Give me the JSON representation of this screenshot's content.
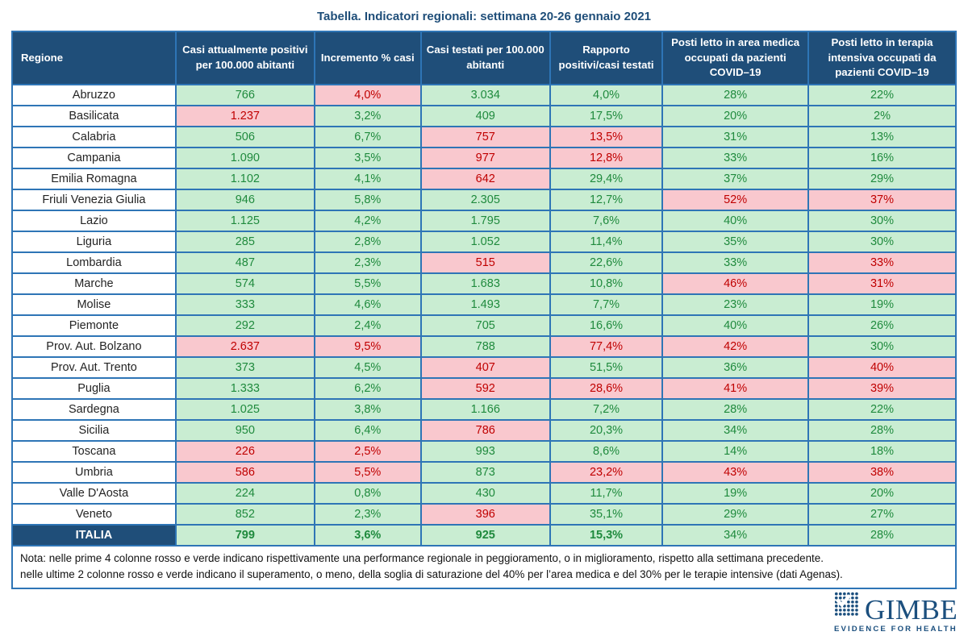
{
  "title": "Tabella. Indicatori regionali: settimana 20-26 gennaio 2021",
  "colors": {
    "header_navy": "#1F4E79",
    "grid_blue": "#2E75B6",
    "good_bg": "#C9EDD2",
    "good_text": "#1F8A3D",
    "bad_bg": "#F9C8CE",
    "bad_text": "#C00000"
  },
  "chart_data": {
    "type": "table",
    "title": "Tabella. Indicatori regionali: settimana 20-26 gennaio 2021",
    "columns": [
      "Regione",
      "Casi attualmente positivi per 100.000 abitanti",
      "Incremento % casi",
      "Casi testati per 100.000 abitanti",
      "Rapporto positivi/casi testati",
      "Posti letto in area medica occupati da pazienti COVID–19",
      "Posti letto in terapia intensiva occupati da pazienti COVID–19"
    ],
    "rows": [
      {
        "region": "Abruzzo",
        "values": [
          "766",
          "4,0%",
          "3.034",
          "4,0%",
          "28%",
          "22%"
        ],
        "colors": [
          "green",
          "red",
          "green",
          "green",
          "green",
          "green"
        ]
      },
      {
        "region": "Basilicata",
        "values": [
          "1.237",
          "3,2%",
          "409",
          "17,5%",
          "20%",
          "2%"
        ],
        "colors": [
          "red",
          "green",
          "green",
          "green",
          "green",
          "green"
        ]
      },
      {
        "region": "Calabria",
        "values": [
          "506",
          "6,7%",
          "757",
          "13,5%",
          "31%",
          "13%"
        ],
        "colors": [
          "green",
          "green",
          "red",
          "red",
          "green",
          "green"
        ]
      },
      {
        "region": "Campania",
        "values": [
          "1.090",
          "3,5%",
          "977",
          "12,8%",
          "33%",
          "16%"
        ],
        "colors": [
          "green",
          "green",
          "red",
          "red",
          "green",
          "green"
        ]
      },
      {
        "region": "Emilia Romagna",
        "values": [
          "1.102",
          "4,1%",
          "642",
          "29,4%",
          "37%",
          "29%"
        ],
        "colors": [
          "green",
          "green",
          "red",
          "green",
          "green",
          "green"
        ]
      },
      {
        "region": "Friuli Venezia Giulia",
        "values": [
          "946",
          "5,8%",
          "2.305",
          "12,7%",
          "52%",
          "37%"
        ],
        "colors": [
          "green",
          "green",
          "green",
          "green",
          "red",
          "red"
        ]
      },
      {
        "region": "Lazio",
        "values": [
          "1.125",
          "4,2%",
          "1.795",
          "7,6%",
          "40%",
          "30%"
        ],
        "colors": [
          "green",
          "green",
          "green",
          "green",
          "green",
          "green"
        ]
      },
      {
        "region": "Liguria",
        "values": [
          "285",
          "2,8%",
          "1.052",
          "11,4%",
          "35%",
          "30%"
        ],
        "colors": [
          "green",
          "green",
          "green",
          "green",
          "green",
          "green"
        ]
      },
      {
        "region": "Lombardia",
        "values": [
          "487",
          "2,3%",
          "515",
          "22,6%",
          "33%",
          "33%"
        ],
        "colors": [
          "green",
          "green",
          "red",
          "green",
          "green",
          "red"
        ]
      },
      {
        "region": "Marche",
        "values": [
          "574",
          "5,5%",
          "1.683",
          "10,8%",
          "46%",
          "31%"
        ],
        "colors": [
          "green",
          "green",
          "green",
          "green",
          "red",
          "red"
        ]
      },
      {
        "region": "Molise",
        "values": [
          "333",
          "4,6%",
          "1.493",
          "7,7%",
          "23%",
          "19%"
        ],
        "colors": [
          "green",
          "green",
          "green",
          "green",
          "green",
          "green"
        ]
      },
      {
        "region": "Piemonte",
        "values": [
          "292",
          "2,4%",
          "705",
          "16,6%",
          "40%",
          "26%"
        ],
        "colors": [
          "green",
          "green",
          "green",
          "green",
          "green",
          "green"
        ]
      },
      {
        "region": "Prov. Aut. Bolzano",
        "values": [
          "2.637",
          "9,5%",
          "788",
          "77,4%",
          "42%",
          "30%"
        ],
        "colors": [
          "red",
          "red",
          "green",
          "red",
          "red",
          "green"
        ]
      },
      {
        "region": "Prov. Aut. Trento",
        "values": [
          "373",
          "4,5%",
          "407",
          "51,5%",
          "36%",
          "40%"
        ],
        "colors": [
          "green",
          "green",
          "red",
          "green",
          "green",
          "red"
        ]
      },
      {
        "region": "Puglia",
        "values": [
          "1.333",
          "6,2%",
          "592",
          "28,6%",
          "41%",
          "39%"
        ],
        "colors": [
          "green",
          "green",
          "red",
          "red",
          "red",
          "red"
        ]
      },
      {
        "region": "Sardegna",
        "values": [
          "1.025",
          "3,8%",
          "1.166",
          "7,2%",
          "28%",
          "22%"
        ],
        "colors": [
          "green",
          "green",
          "green",
          "green",
          "green",
          "green"
        ]
      },
      {
        "region": "Sicilia",
        "values": [
          "950",
          "6,4%",
          "786",
          "20,3%",
          "34%",
          "28%"
        ],
        "colors": [
          "green",
          "green",
          "red",
          "green",
          "green",
          "green"
        ]
      },
      {
        "region": "Toscana",
        "values": [
          "226",
          "2,5%",
          "993",
          "8,6%",
          "14%",
          "18%"
        ],
        "colors": [
          "red",
          "red",
          "green",
          "green",
          "green",
          "green"
        ]
      },
      {
        "region": "Umbria",
        "values": [
          "586",
          "5,5%",
          "873",
          "23,2%",
          "43%",
          "38%"
        ],
        "colors": [
          "red",
          "red",
          "green",
          "red",
          "red",
          "red"
        ]
      },
      {
        "region": "Valle D'Aosta",
        "values": [
          "224",
          "0,8%",
          "430",
          "11,7%",
          "19%",
          "20%"
        ],
        "colors": [
          "green",
          "green",
          "green",
          "green",
          "green",
          "green"
        ]
      },
      {
        "region": "Veneto",
        "values": [
          "852",
          "2,3%",
          "396",
          "35,1%",
          "29%",
          "27%"
        ],
        "colors": [
          "green",
          "green",
          "red",
          "green",
          "green",
          "green"
        ]
      }
    ],
    "totals": {
      "region": "ITALIA",
      "values": [
        "799",
        "3,6%",
        "925",
        "15,3%",
        "34%",
        "28%"
      ],
      "colors": [
        "green",
        "green",
        "green",
        "green",
        "green",
        "green"
      ],
      "bold": [
        true,
        true,
        true,
        true,
        false,
        false
      ]
    }
  },
  "note": {
    "line1": "Nota: nelle prime 4 colonne rosso e verde indicano rispettivamente una performance regionale in peggioramento, o in miglioramento, rispetto alla settimana precedente.",
    "line2": "nelle ultime 2 colonne rosso e verde indicano il superamento, o meno, della soglia di saturazione del 40% per l’area medica e del 30% per le terapie intensive (dati Agenas)."
  },
  "logo": {
    "word": "GIMBE",
    "tagline": "EVIDENCE FOR HEALTH"
  }
}
